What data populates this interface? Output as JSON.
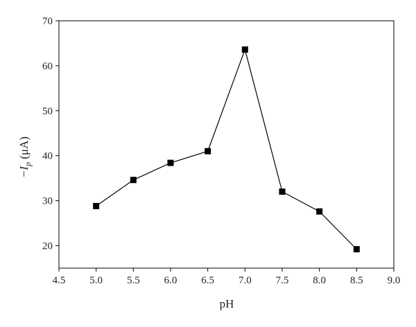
{
  "chart_data": {
    "type": "line",
    "xlabel": "pH",
    "ylabel": "−I",
    "ylabel_sub": "p",
    "ylabel_unit": " (μA)",
    "xlim": [
      4.5,
      9.0
    ],
    "ylim": [
      15,
      70
    ],
    "xticks": [
      4.5,
      5.0,
      5.5,
      6.0,
      6.5,
      7.0,
      7.5,
      8.0,
      8.5,
      9.0
    ],
    "xtick_labels": [
      "4.5",
      "5.0",
      "5.5",
      "6.0",
      "6.5",
      "7.0",
      "7.5",
      "8.0",
      "8.5",
      "9.0"
    ],
    "yticks": [
      20,
      30,
      40,
      50,
      60,
      70
    ],
    "ytick_labels": [
      "20",
      "30",
      "40",
      "50",
      "60",
      "70"
    ],
    "grid": false,
    "marker": "square",
    "series": [
      {
        "x": [
          5.0,
          5.5,
          6.0,
          6.5,
          7.0,
          7.5,
          8.0,
          8.5
        ],
        "y": [
          28.8,
          34.6,
          38.4,
          41.0,
          63.6,
          32.0,
          27.6,
          19.2
        ]
      }
    ],
    "colors": {
      "line": "#000000",
      "marker": "#000000",
      "axis": "#000000"
    }
  }
}
